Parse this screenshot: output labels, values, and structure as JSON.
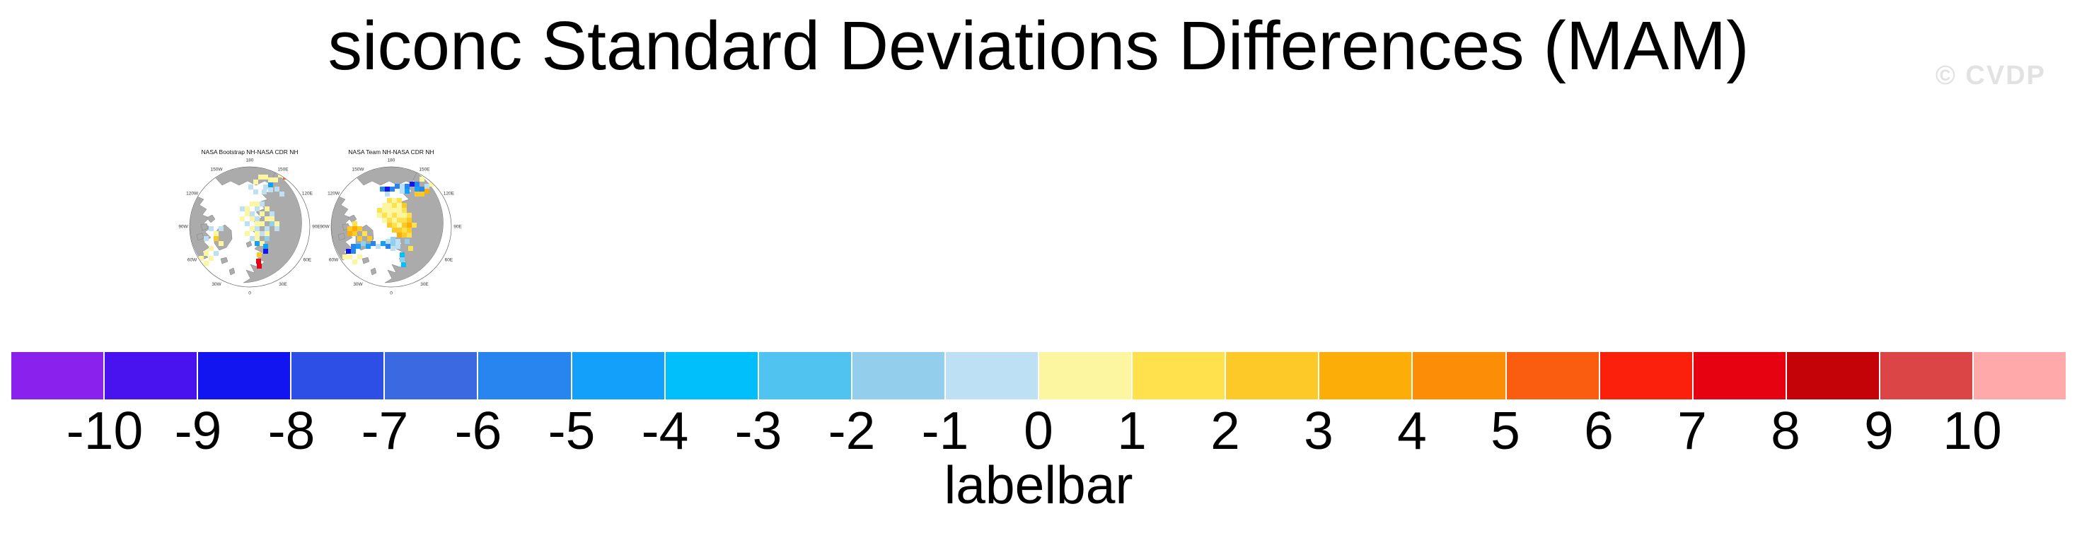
{
  "header": {
    "title": "siconc Standard Deviations Differences (MAM)",
    "watermark": "© CVDP"
  },
  "panels": [
    {
      "title": "NASA Bootstrap NH-NASA CDR NH",
      "cells": [
        [
          110,
          38,
          11
        ],
        [
          117,
          31,
          11
        ],
        [
          124,
          31,
          11
        ],
        [
          131,
          35,
          11
        ],
        [
          138,
          35,
          11
        ],
        [
          145,
          28,
          11
        ],
        [
          152,
          31,
          16
        ],
        [
          103,
          45,
          10
        ],
        [
          110,
          52,
          10
        ],
        [
          124,
          45,
          10
        ],
        [
          131,
          42,
          6
        ],
        [
          131,
          49,
          10
        ],
        [
          122,
          52,
          10
        ],
        [
          140,
          48,
          10
        ],
        [
          147,
          55,
          10
        ],
        [
          105,
          69,
          11
        ],
        [
          112,
          69,
          11
        ],
        [
          119,
          69,
          10
        ],
        [
          91,
          76,
          10
        ],
        [
          98,
          76,
          11
        ],
        [
          112,
          76,
          10
        ],
        [
          126,
          76,
          11
        ],
        [
          98,
          83,
          11
        ],
        [
          105,
          83,
          10
        ],
        [
          119,
          83,
          11
        ],
        [
          133,
          83,
          10
        ],
        [
          91,
          90,
          11
        ],
        [
          105,
          90,
          11
        ],
        [
          112,
          90,
          10
        ],
        [
          126,
          90,
          11
        ],
        [
          133,
          90,
          11
        ],
        [
          98,
          97,
          10
        ],
        [
          112,
          97,
          11
        ],
        [
          119,
          97,
          11
        ],
        [
          133,
          97,
          9
        ],
        [
          140,
          97,
          11
        ],
        [
          105,
          104,
          11
        ],
        [
          112,
          104,
          10
        ],
        [
          126,
          104,
          10
        ],
        [
          140,
          104,
          10
        ],
        [
          98,
          111,
          11
        ],
        [
          112,
          111,
          11
        ],
        [
          119,
          111,
          10
        ],
        [
          126,
          111,
          11
        ],
        [
          105,
          118,
          10
        ],
        [
          112,
          118,
          11
        ],
        [
          126,
          118,
          9
        ],
        [
          112,
          125,
          6
        ],
        [
          119,
          125,
          11
        ],
        [
          47,
          104,
          10
        ],
        [
          54,
          111,
          11
        ],
        [
          61,
          104,
          10
        ],
        [
          40,
          118,
          10
        ],
        [
          54,
          118,
          13
        ],
        [
          61,
          125,
          11
        ],
        [
          47,
          132,
          11
        ],
        [
          40,
          139,
          11
        ],
        [
          54,
          139,
          10
        ],
        [
          33,
          146,
          11
        ],
        [
          47,
          146,
          11
        ],
        [
          40,
          153,
          11
        ],
        [
          115,
          141,
          13
        ],
        [
          114,
          150,
          18
        ],
        [
          115,
          157,
          18
        ],
        [
          124,
          129,
          6
        ],
        [
          124,
          136,
          2
        ]
      ]
    },
    {
      "title": "NASA Team NH-NASA CDR NH",
      "cells": [
        [
          96,
          48,
          2
        ],
        [
          131,
          41,
          2
        ],
        [
          89,
          48,
          5
        ],
        [
          103,
          48,
          5
        ],
        [
          110,
          44,
          5
        ],
        [
          124,
          44,
          5
        ],
        [
          138,
          41,
          5
        ],
        [
          145,
          48,
          5
        ],
        [
          117,
          44,
          10
        ],
        [
          152,
          44,
          10
        ],
        [
          117,
          51,
          10
        ],
        [
          96,
          55,
          10
        ],
        [
          124,
          51,
          6
        ],
        [
          138,
          48,
          6
        ],
        [
          145,
          34,
          11
        ],
        [
          159,
          41,
          11
        ],
        [
          138,
          55,
          13
        ],
        [
          145,
          55,
          13
        ],
        [
          152,
          51,
          14
        ],
        [
          99,
          64,
          12
        ],
        [
          106,
          64,
          11
        ],
        [
          113,
          64,
          12
        ],
        [
          92,
          71,
          11
        ],
        [
          99,
          71,
          11
        ],
        [
          106,
          71,
          12
        ],
        [
          113,
          71,
          11
        ],
        [
          120,
          71,
          13
        ],
        [
          85,
          78,
          12
        ],
        [
          92,
          78,
          11
        ],
        [
          99,
          78,
          11
        ],
        [
          106,
          78,
          11
        ],
        [
          113,
          78,
          11
        ],
        [
          120,
          78,
          12
        ],
        [
          85,
          85,
          11
        ],
        [
          92,
          85,
          12
        ],
        [
          99,
          85,
          11
        ],
        [
          106,
          85,
          12
        ],
        [
          113,
          85,
          11
        ],
        [
          120,
          85,
          11
        ],
        [
          127,
          85,
          12
        ],
        [
          92,
          92,
          11
        ],
        [
          99,
          92,
          12
        ],
        [
          106,
          92,
          11
        ],
        [
          113,
          92,
          12
        ],
        [
          120,
          92,
          12
        ],
        [
          127,
          92,
          13
        ],
        [
          99,
          99,
          13
        ],
        [
          106,
          99,
          12
        ],
        [
          113,
          99,
          11
        ],
        [
          120,
          99,
          13
        ],
        [
          127,
          99,
          14
        ],
        [
          134,
          99,
          12
        ],
        [
          106,
          106,
          13
        ],
        [
          113,
          106,
          13
        ],
        [
          120,
          106,
          12
        ],
        [
          127,
          106,
          13
        ],
        [
          113,
          113,
          14
        ],
        [
          120,
          113,
          13
        ],
        [
          127,
          113,
          12
        ],
        [
          50,
          97,
          12
        ],
        [
          43,
          104,
          13
        ],
        [
          50,
          104,
          14
        ],
        [
          57,
          104,
          13
        ],
        [
          43,
          111,
          14
        ],
        [
          50,
          111,
          13
        ],
        [
          64,
          111,
          12
        ],
        [
          57,
          118,
          13
        ],
        [
          71,
          118,
          13
        ],
        [
          48,
          129,
          5
        ],
        [
          55,
          129,
          6
        ],
        [
          62,
          125,
          9
        ],
        [
          69,
          129,
          6
        ],
        [
          76,
          125,
          5
        ],
        [
          83,
          129,
          10
        ],
        [
          90,
          125,
          6
        ],
        [
          97,
          129,
          5
        ],
        [
          104,
          125,
          9
        ],
        [
          111,
          129,
          10
        ],
        [
          41,
          136,
          2
        ],
        [
          48,
          136,
          5
        ],
        [
          104,
          132,
          10
        ],
        [
          97,
          122,
          10
        ],
        [
          104,
          119,
          9
        ],
        [
          111,
          122,
          10
        ],
        [
          124,
          122,
          9
        ],
        [
          43,
          144,
          11
        ],
        [
          50,
          151,
          11
        ],
        [
          57,
          144,
          11
        ],
        [
          36,
          144,
          11
        ],
        [
          117,
          141,
          7
        ],
        [
          117,
          148,
          9
        ],
        [
          119,
          155,
          7
        ],
        [
          129,
          132,
          12
        ]
      ]
    }
  ],
  "compass": [
    {
      "t": "180",
      "a": 0
    },
    {
      "t": "150E",
      "a": 30
    },
    {
      "t": "120E",
      "a": 60
    },
    {
      "t": "90E",
      "a": 90
    },
    {
      "t": "60E",
      "a": 120
    },
    {
      "t": "30E",
      "a": 150
    },
    {
      "t": "0",
      "a": 180
    },
    {
      "t": "30W",
      "a": 210
    },
    {
      "t": "60W",
      "a": 240
    },
    {
      "t": "90W",
      "a": 270
    },
    {
      "t": "120W",
      "a": 300
    },
    {
      "t": "150W",
      "a": 330
    }
  ],
  "labelbar": {
    "label": "labelbar",
    "ticks": [
      "-10",
      "-9",
      "-8",
      "-7",
      "-6",
      "-5",
      "-4",
      "-3",
      "-2",
      "-1",
      "0",
      "1",
      "2",
      "3",
      "4",
      "5",
      "6",
      "7",
      "8",
      "9",
      "10"
    ],
    "colors": [
      "#8A21EC",
      "#4813EF",
      "#1315F0",
      "#2E4FE6",
      "#3A69E2",
      "#2885F0",
      "#12A0FA",
      "#00BFFA",
      "#50C3F0",
      "#93CFEC",
      "#BDE0F4",
      "#FCF6A1",
      "#FEE14C",
      "#FDC928",
      "#FDAD08",
      "#FC8D06",
      "#FB5D10",
      "#FA200C",
      "#E60210",
      "#C40309",
      "#DC4545",
      "#FFA9AB"
    ]
  },
  "map_style": {
    "land_color": "#ABABAB",
    "coast_color": "#808080",
    "circle_color": "#666666",
    "ocean_color": "#FFFFFF"
  },
  "chart_data": {
    "type": "heatmap",
    "title": "siconc Standard Deviations Differences (MAM)",
    "panels": [
      "NASA Bootstrap NH-NASA CDR NH",
      "NASA Team NH-NASA CDR NH"
    ],
    "projection": "north-polar-stereographic",
    "variable": "siconc standard deviation difference",
    "season": "MAM",
    "colorbar_label": "labelbar",
    "colorbar_tick_values": [
      -10,
      -9,
      -8,
      -7,
      -6,
      -5,
      -4,
      -3,
      -2,
      -1,
      0,
      1,
      2,
      3,
      4,
      5,
      6,
      7,
      8,
      9,
      10
    ],
    "colorbar_n_bins": 22,
    "colorbar_colors": [
      "#8A21EC",
      "#4813EF",
      "#1315F0",
      "#2E4FE6",
      "#3A69E2",
      "#2885F0",
      "#12A0FA",
      "#00BFFA",
      "#50C3F0",
      "#93CFEC",
      "#BDE0F4",
      "#FCF6A1",
      "#FEE14C",
      "#FDC928",
      "#FDAD08",
      "#FC8D06",
      "#FB5D10",
      "#FA200C",
      "#E60210",
      "#C40309",
      "#DC4545",
      "#FFA9AB"
    ],
    "legend_position": "bottom",
    "compass_labels": [
      "180",
      "150E",
      "120E",
      "90E",
      "60E",
      "30E",
      "0",
      "30W",
      "60W",
      "90W",
      "120W",
      "150W"
    ],
    "panel_summaries": [
      "scattered weak positive (pale yellow) and weak negative (light blue) cells across central Arctic; strong positive (red) patch near Baltic; orange cell near Chukotka",
      "broad positive (yellow/orange) anomaly over central Arctic and Canadian Archipelago; negative (blue) bands along Bering/Chukchi edge and Hudson/Labrador edge"
    ]
  }
}
